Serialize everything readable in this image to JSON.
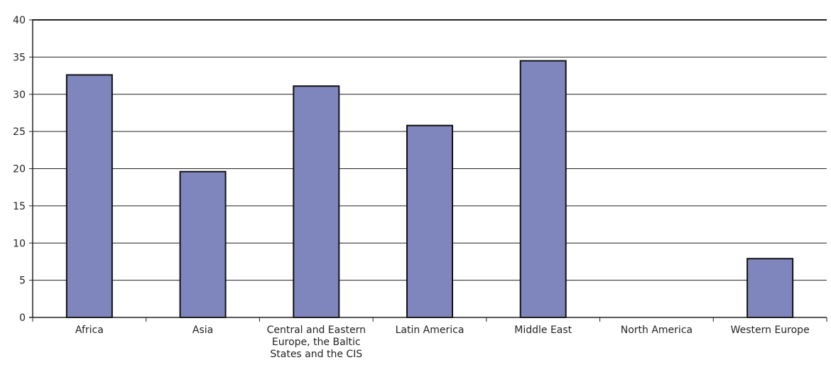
{
  "chart_data": {
    "type": "bar",
    "title": "",
    "xlabel": "",
    "ylabel": "",
    "categories": [
      [
        "Africa"
      ],
      [
        "Asia"
      ],
      [
        "Central and Eastern",
        "Europe, the Baltic",
        "States and the CIS"
      ],
      [
        "Latin America"
      ],
      [
        "Middle East"
      ],
      [
        "North America"
      ],
      [
        "Western Europe"
      ]
    ],
    "values": [
      32.6,
      19.6,
      31.1,
      25.8,
      34.5,
      0,
      7.9
    ],
    "ylim": [
      0,
      40
    ],
    "yticks": [
      0,
      5,
      10,
      15,
      20,
      25,
      30,
      35,
      40
    ],
    "grid": true,
    "legend": "none",
    "bar_color": "#7f86be",
    "bar_edge_color": "#111111"
  }
}
